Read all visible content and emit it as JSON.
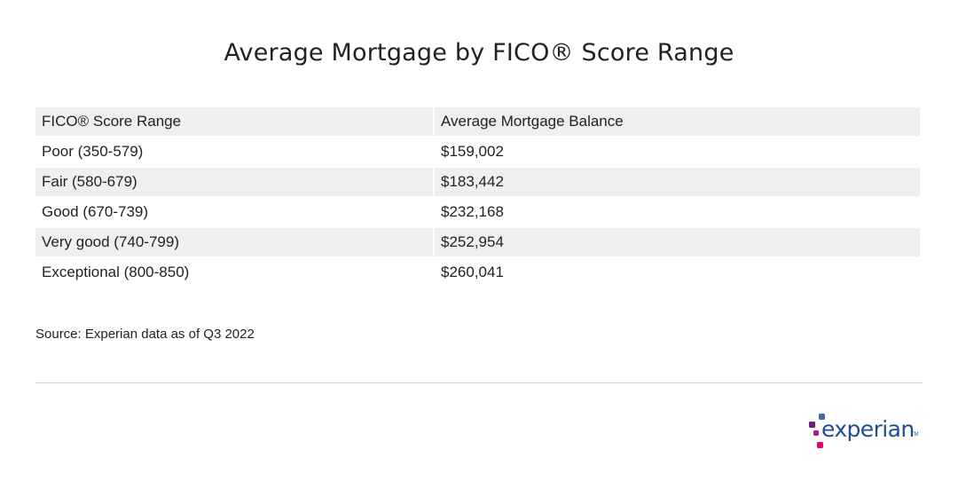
{
  "title": "Average Mortgage by FICO® Score Range",
  "chart_data": {
    "type": "table",
    "columns": [
      "FICO® Score Range",
      "Average Mortgage Balance"
    ],
    "rows": [
      [
        "Poor (350-579)",
        "$159,002"
      ],
      [
        "Fair (580-679)",
        "$183,442"
      ],
      [
        "Good (670-739)",
        "$232,168"
      ],
      [
        "Very good (740-799)",
        "$252,954"
      ],
      [
        "Exceptional (800-850)",
        "$260,041"
      ]
    ]
  },
  "source": "Source: Experian data as of Q3 2022",
  "logo": {
    "text": "experian",
    "trademark": "TM",
    "colors": {
      "text": "#1d4f91",
      "dot_blue": "#426da9",
      "dot_purple": "#6d2077",
      "dot_magenta": "#af1685",
      "dot_red": "#e80070"
    }
  }
}
